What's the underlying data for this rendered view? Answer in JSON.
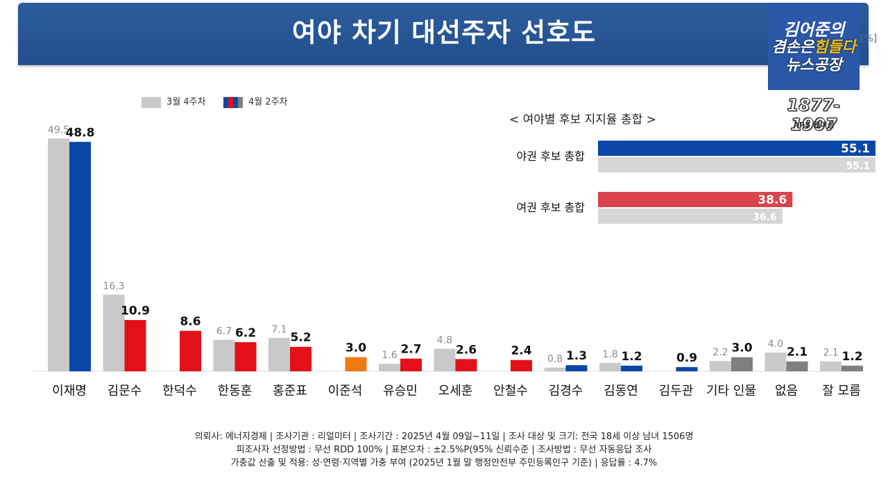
{
  "title": "여야 차기 대선주자 선호도",
  "unit": "[%]",
  "logo": {
    "line1": "김어준의",
    "line2_a": "겸손은",
    "line2_b": "힘들다",
    "line3": "뉴스공장",
    "years": "1877-1907",
    "ars": "ARS 웹여심"
  },
  "legend": {
    "prev": "3월 4주차",
    "curr": "4월 2주차"
  },
  "colors": {
    "prev": "#c9c9c9",
    "blue": "#0b47a8",
    "red": "#e3101a",
    "orange": "#f07a12",
    "gray": "#7f7f7f"
  },
  "chart_data": [
    {
      "type": "bar",
      "categories": [
        "이재명",
        "김문수",
        "한덕수",
        "한동훈",
        "홍준표",
        "이준석",
        "유승민",
        "오세훈",
        "안철수",
        "김경수",
        "김동연",
        "김두관",
        "기타 인물",
        "없음",
        "잘 모름"
      ],
      "series": [
        {
          "name": "3월 4주차",
          "values": [
            49.5,
            16.3,
            null,
            6.7,
            7.1,
            null,
            1.6,
            4.8,
            null,
            0.8,
            1.8,
            null,
            2.2,
            4.0,
            2.1
          ],
          "labels": [
            "49.5",
            "16.3",
            "",
            "6.7",
            "7.1",
            "",
            "1.6",
            "4.8",
            "",
            "0.8",
            "1.8",
            "",
            "2.2",
            "4.0",
            "2.1"
          ]
        },
        {
          "name": "4월 2주차",
          "values": [
            48.8,
            10.9,
            8.6,
            6.2,
            5.2,
            3.0,
            2.7,
            2.6,
            2.4,
            1.3,
            1.2,
            0.9,
            3.0,
            2.1,
            1.2
          ],
          "labels": [
            "48.8",
            "10.9",
            "8.6",
            "6.2",
            "5.2",
            "3.0",
            "2.7",
            "2.6",
            "2.4",
            "1.3",
            "1.2",
            "0.9",
            "3.0",
            "2.1",
            "1.2"
          ],
          "colors": [
            "blue",
            "red",
            "red",
            "red",
            "red",
            "orange",
            "red",
            "red",
            "red",
            "blue",
            "blue",
            "blue",
            "gray",
            "gray",
            "gray"
          ]
        }
      ],
      "ylim": [
        0,
        50
      ]
    },
    {
      "type": "bar",
      "orientation": "horizontal",
      "title": "< 여야별 후보 지지율 총합 >",
      "categories": [
        "야권 후보 총합",
        "여권 후보 총합"
      ],
      "series": [
        {
          "name": "4월 2주차",
          "values": [
            55.1,
            38.6
          ],
          "labels": [
            "55.1",
            "38.6"
          ],
          "colors": [
            "#0b47a8",
            "#d9434b"
          ]
        },
        {
          "name": "3월 4주차",
          "values": [
            55.1,
            36.6
          ],
          "labels": [
            "55.1",
            "36.6"
          ]
        }
      ]
    }
  ],
  "footer": {
    "line1": "의뢰사: 에너지경제 | 조사기관 : 리얼미터  |  조사기간 : 2025년 4월 09일~11일 | 조사 대상 및 크기: 전국 18세 이상 남녀 1506명",
    "line2": "피조사자 선정방법 : 무선 RDD 100% | 표본오차 : ±2.5%P(95% 신뢰수준 | 조사방법 : 무선 자동응답 조사",
    "line3": "가충값 산출 및 적용: 성·연령·지역별 가충 부여 (2025년 1월 말 행정안전부 주민등록인구 기준) | 응답률 : 4.7%"
  }
}
